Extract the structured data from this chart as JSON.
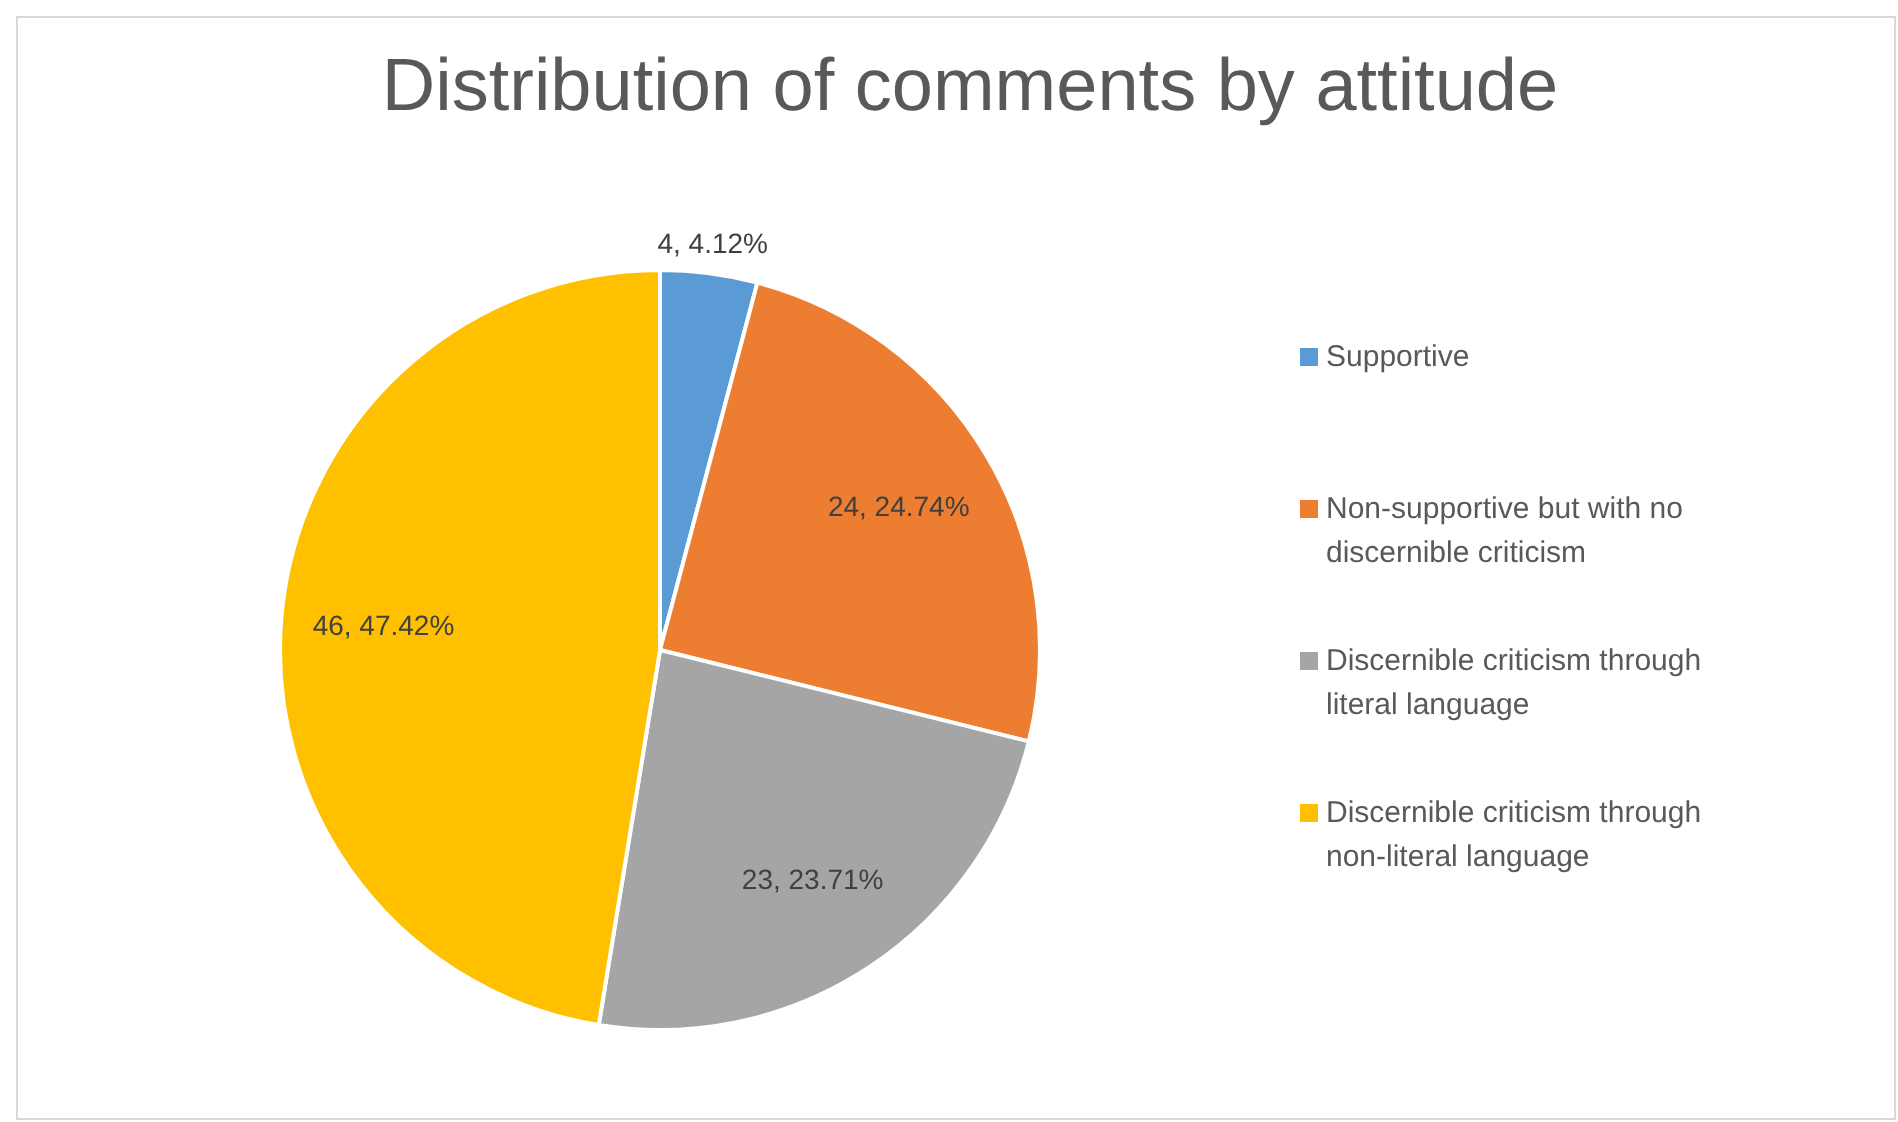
{
  "chart_data": {
    "type": "pie",
    "title": "Distribution of comments by attitude",
    "categories": [
      "Supportive",
      "Non-supportive but with no discernible criticism",
      "Discernible criticism through literal language",
      "Discernible criticism through non-literal language"
    ],
    "values": [
      4,
      24,
      23,
      46
    ],
    "colors": [
      "#5b9bd5",
      "#ed7d31",
      "#a5a5a5",
      "#ffc000"
    ],
    "value_labels": [
      "4, 4.12%",
      "24, 24.74%",
      "23, 23.71%",
      "46, 47.42%"
    ],
    "legend": "right"
  }
}
